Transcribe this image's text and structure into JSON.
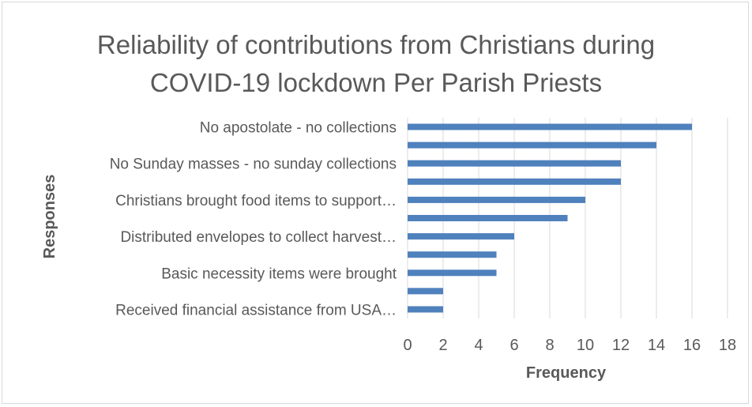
{
  "chart_data": {
    "type": "bar",
    "orientation": "horizontal",
    "title": "Reliability of contributions from Christians during\nCOVID-19 lockdown Per Parish Priests",
    "xlabel": "Frequency",
    "ylabel": "Responses",
    "xlim": [
      0,
      18
    ],
    "x_ticks": [
      0,
      2,
      4,
      6,
      8,
      10,
      12,
      14,
      16,
      18
    ],
    "grid": "vertical",
    "legend": "none",
    "bar_color": "#4f81bd",
    "categories": [
      "No apostolate - no collections",
      "",
      "No Sunday masses - no sunday collections",
      "",
      "Christians  brought food items to support…",
      "",
      "Distributed envelopes to collect harvest…",
      "",
      "Basic necessity items were brought",
      "",
      "Received financial assistance from USA…"
    ],
    "values": [
      16,
      14,
      12,
      12,
      10,
      9,
      6,
      5,
      5,
      2,
      2
    ]
  }
}
